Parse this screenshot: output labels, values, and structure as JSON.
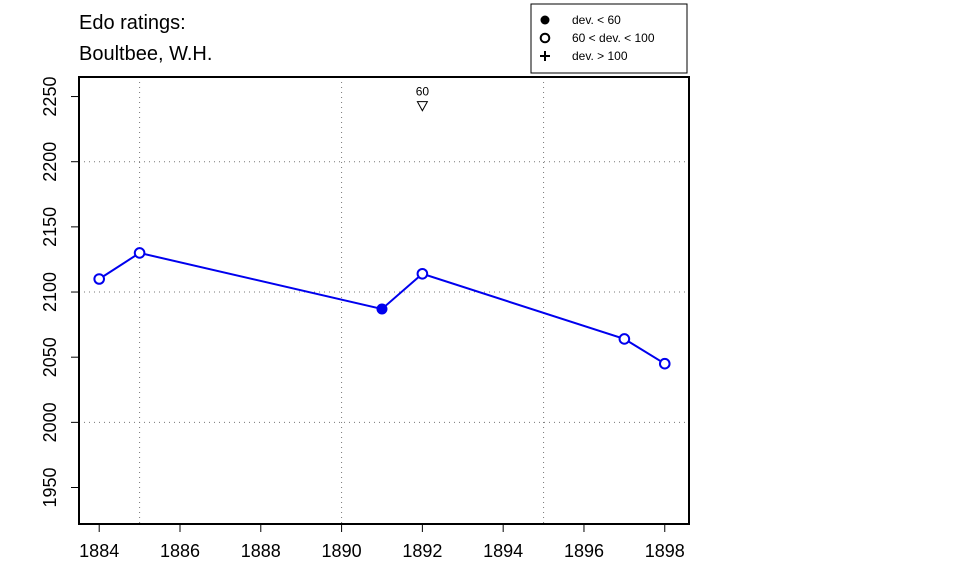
{
  "chart_data": {
    "type": "line",
    "title": "Edo ratings:",
    "subtitle": "Boultbee, W.H.",
    "xlabel": "",
    "ylabel": "",
    "xlim": [
      1883.5,
      1898.6
    ],
    "ylim": [
      1922,
      2265
    ],
    "x_ticks": [
      1884,
      1886,
      1888,
      1890,
      1892,
      1894,
      1896,
      1898
    ],
    "y_ticks": [
      1950,
      2000,
      2050,
      2100,
      2150,
      2200,
      2250
    ],
    "x_grid": [
      1885,
      1890,
      1895
    ],
    "y_grid": [
      2000,
      2100,
      2200
    ],
    "grid": true,
    "series": [
      {
        "color": "#0000ee",
        "points": [
          {
            "x": 1884,
            "y": 2110,
            "marker": "open-circle"
          },
          {
            "x": 1885,
            "y": 2130,
            "marker": "open-circle"
          },
          {
            "x": 1891,
            "y": 2087,
            "marker": "filled-circle"
          },
          {
            "x": 1892,
            "y": 2114,
            "marker": "open-circle"
          },
          {
            "x": 1897,
            "y": 2064,
            "marker": "open-circle"
          },
          {
            "x": 1898,
            "y": 2045,
            "marker": "open-circle"
          }
        ]
      }
    ],
    "annotations": [
      {
        "x": 1892,
        "y": 2243,
        "text": "60",
        "marker": "open-triangle-down"
      }
    ],
    "legend": {
      "position": "top-right",
      "entries": [
        {
          "label": "dev. < 60",
          "marker": "filled-circle"
        },
        {
          "label": "60 < dev. < 100",
          "marker": "open-circle"
        },
        {
          "label": "dev. > 100",
          "marker": "plus"
        }
      ]
    }
  }
}
